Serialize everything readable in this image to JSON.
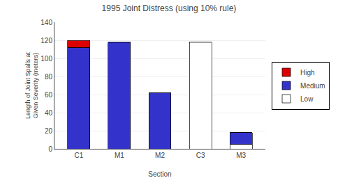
{
  "chart_data": {
    "type": "bar",
    "stacked": true,
    "title": "1995 Joint Distress (using 10% rule)",
    "xlabel": "Section",
    "ylabel": "Length of Joint Spalls at Given Severity (meters)",
    "categories": [
      "C1",
      "M1",
      "M2",
      "C3",
      "M3"
    ],
    "series": [
      {
        "name": "Low",
        "color": "#ffffff",
        "values": [
          0,
          0,
          0,
          118,
          5
        ]
      },
      {
        "name": "Medium",
        "color": "#3333cc",
        "values": [
          112,
          118,
          62,
          0,
          13
        ]
      },
      {
        "name": "High",
        "color": "#dd0000",
        "values": [
          8,
          0,
          0,
          0,
          0
        ]
      }
    ],
    "ylim": [
      0,
      140
    ],
    "yticks": [
      0,
      20,
      40,
      60,
      80,
      100,
      120,
      140
    ],
    "grid": true,
    "legend": "right"
  }
}
